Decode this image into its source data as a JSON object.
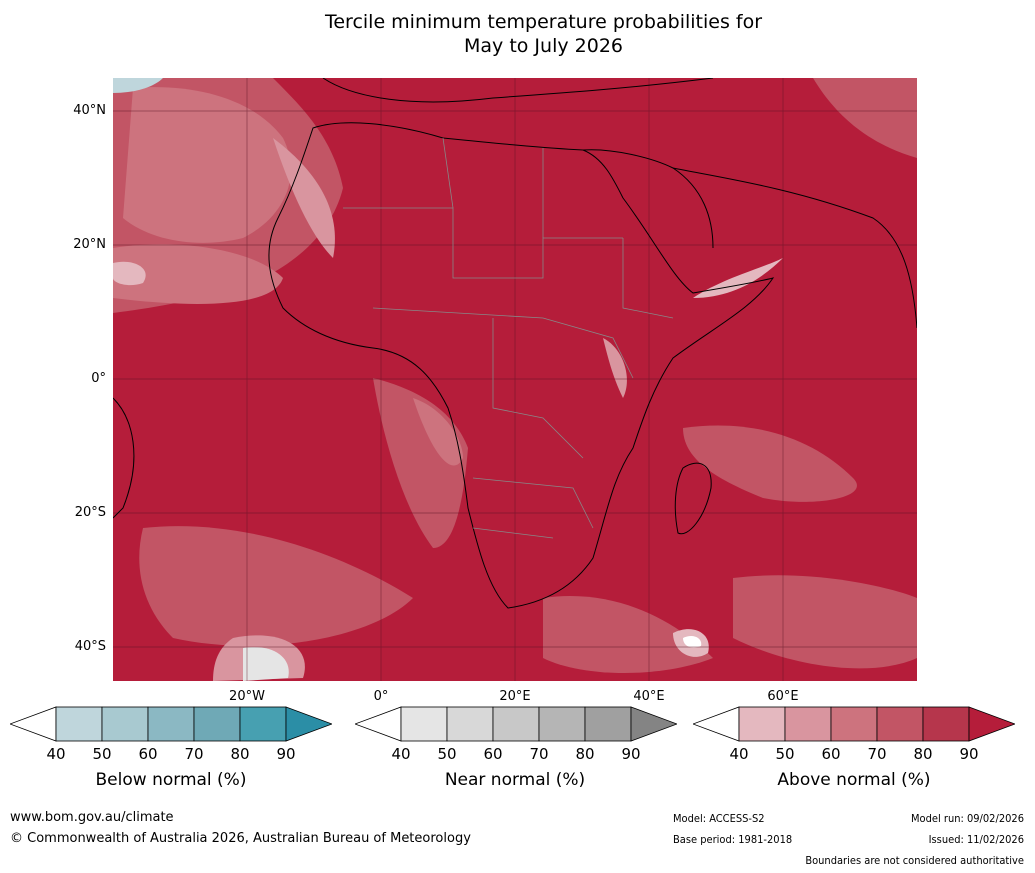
{
  "title": {
    "line1": "Tercile minimum temperature probabilities for",
    "line2": "May to July 2026"
  },
  "axes": {
    "latitude": [
      "40°N",
      "20°N",
      "0°",
      "20°S",
      "40°S"
    ],
    "longitude": [
      "20°W",
      "0°",
      "20°E",
      "40°E",
      "60°E"
    ]
  },
  "colorbars": [
    {
      "name": "below",
      "label": "Below normal (%)",
      "ticks": [
        "40",
        "50",
        "60",
        "70",
        "80",
        "90"
      ],
      "colors": [
        "#ffffff",
        "#bfd6dc",
        "#a8c9d0",
        "#8bb8c3",
        "#6fa9b6",
        "#47a0b1",
        "#2b8ea6"
      ]
    },
    {
      "name": "near",
      "label": "Near normal (%)",
      "ticks": [
        "40",
        "50",
        "60",
        "70",
        "80",
        "90"
      ],
      "colors": [
        "#ffffff",
        "#e5e5e5",
        "#d8d8d8",
        "#c8c8c8",
        "#b5b5b5",
        "#a0a0a0",
        "#848484"
      ]
    },
    {
      "name": "above",
      "label": "Above normal (%)",
      "ticks": [
        "40",
        "50",
        "60",
        "70",
        "80",
        "90"
      ],
      "colors": [
        "#ffffff",
        "#e4b8bf",
        "#d9959f",
        "#cd737e",
        "#c25565",
        "#b6364c",
        "#b51d3a"
      ]
    }
  ],
  "footer": {
    "website": "www.bom.gov.au/climate",
    "copyright": "© Commonwealth of Australia 2026, Australian Bureau of Meteorology",
    "model": "Model: ACCESS-S2",
    "base_period": "Base period: 1981-2018",
    "model_run": "Model run: 09/02/2026",
    "issued": "Issued: 11/02/2026",
    "disclaimer": "Boundaries are not considered authoritative"
  }
}
